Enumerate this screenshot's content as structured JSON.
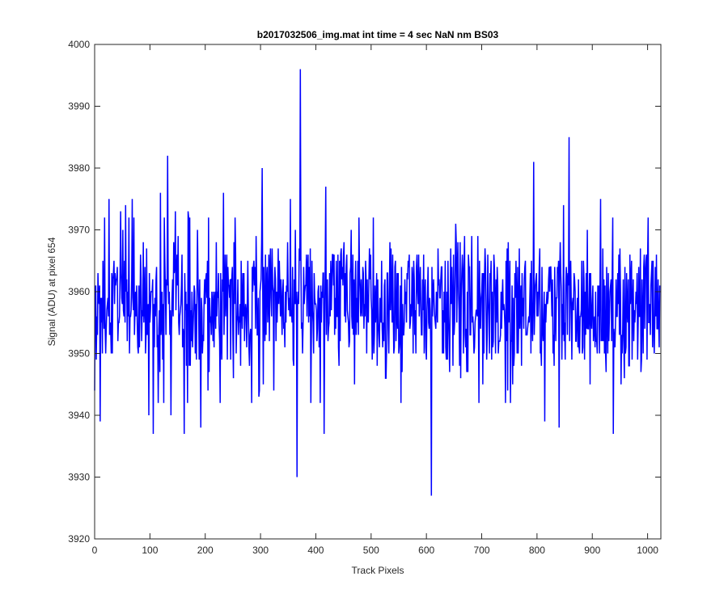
{
  "chart_data": {
    "type": "line",
    "title": "b2017032506_img.mat int time = 4 sec  NaN nm BS03",
    "xlabel": "Track Pixels",
    "ylabel": "Signal (ADU) at pixel 654",
    "xlim": [
      0,
      1024
    ],
    "ylim": [
      3920,
      4000
    ],
    "xticks": [
      "0",
      "100",
      "200",
      "300",
      "400",
      "500",
      "600",
      "700",
      "800",
      "900",
      "1000"
    ],
    "yticks": [
      "3920",
      "3930",
      "3940",
      "3950",
      "3960",
      "3970",
      "3980",
      "3990",
      "4000"
    ],
    "grid": false,
    "line_color": "#0000ff",
    "series": [
      {
        "name": "",
        "keypoints": [
          [
            0,
            3944
          ],
          [
            2,
            3961
          ],
          [
            5,
            3953
          ],
          [
            8,
            3958
          ],
          [
            10,
            3939
          ],
          [
            12,
            3955
          ],
          [
            18,
            3972
          ],
          [
            22,
            3957
          ],
          [
            26,
            3975
          ],
          [
            30,
            3950
          ],
          [
            40,
            3962
          ],
          [
            52,
            3957
          ],
          [
            56,
            3974
          ],
          [
            63,
            3950
          ],
          [
            68,
            3975
          ],
          [
            82,
            3957
          ],
          [
            88,
            3968
          ],
          [
            95,
            3953
          ],
          [
            98,
            3940
          ],
          [
            102,
            3960
          ],
          [
            106,
            3937
          ],
          [
            112,
            3964
          ],
          [
            118,
            3947
          ],
          [
            126,
            3972
          ],
          [
            132,
            3982
          ],
          [
            135,
            3960
          ],
          [
            138,
            3940
          ],
          [
            146,
            3973
          ],
          [
            152,
            3955
          ],
          [
            158,
            3966
          ],
          [
            162,
            3937
          ],
          [
            170,
            3972
          ],
          [
            178,
            3954
          ],
          [
            186,
            3970
          ],
          [
            192,
            3938
          ],
          [
            200,
            3958
          ],
          [
            206,
            3972
          ],
          [
            214,
            3952
          ],
          [
            220,
            3968
          ],
          [
            232,
            3960
          ],
          [
            240,
            3949
          ],
          [
            254,
            3972
          ],
          [
            262,
            3955
          ],
          [
            270,
            3963
          ],
          [
            280,
            3948
          ],
          [
            292,
            3969
          ],
          [
            298,
            3944
          ],
          [
            303,
            3980
          ],
          [
            308,
            3952
          ],
          [
            318,
            3967
          ],
          [
            324,
            3944
          ],
          [
            334,
            3965
          ],
          [
            346,
            3955
          ],
          [
            354,
            3975
          ],
          [
            360,
            3948
          ],
          [
            366,
            3930
          ],
          [
            368,
            3960
          ],
          [
            372,
            3996
          ],
          [
            375,
            3955
          ],
          [
            386,
            3966
          ],
          [
            396,
            3950
          ],
          [
            404,
            3960
          ],
          [
            410,
            3955
          ],
          [
            415,
            3937
          ],
          [
            418,
            3977
          ],
          [
            424,
            3955
          ],
          [
            433,
            3966
          ],
          [
            442,
            3948
          ],
          [
            456,
            3966
          ],
          [
            470,
            3945
          ],
          [
            482,
            3962
          ],
          [
            492,
            3950
          ],
          [
            510,
            3963
          ],
          [
            526,
            3946
          ],
          [
            536,
            3967
          ],
          [
            546,
            3956
          ],
          [
            556,
            3947
          ],
          [
            566,
            3962
          ],
          [
            576,
            3950
          ],
          [
            586,
            3966
          ],
          [
            596,
            3950
          ],
          [
            604,
            3955
          ],
          [
            609,
            3927
          ],
          [
            614,
            3958
          ],
          [
            626,
            3962
          ],
          [
            636,
            3949
          ],
          [
            646,
            3964
          ],
          [
            660,
            3948
          ],
          [
            676,
            3966
          ],
          [
            692,
            3956
          ],
          [
            702,
            3945
          ],
          [
            716,
            3962
          ],
          [
            730,
            3950
          ],
          [
            744,
            3965
          ],
          [
            756,
            3945
          ],
          [
            770,
            3958
          ],
          [
            786,
            3955
          ],
          [
            794,
            3981
          ],
          [
            800,
            3956
          ],
          [
            808,
            3948
          ],
          [
            814,
            3939
          ],
          [
            818,
            3960
          ],
          [
            826,
            3960
          ],
          [
            840,
            3938
          ],
          [
            850,
            3955
          ],
          [
            858,
            3985
          ],
          [
            862,
            3958
          ],
          [
            872,
            3956
          ],
          [
            882,
            3950
          ],
          [
            896,
            3945
          ],
          [
            906,
            3960
          ],
          [
            920,
            3952
          ],
          [
            938,
            3937
          ],
          [
            948,
            3966
          ],
          [
            960,
            3950
          ],
          [
            974,
            3962
          ],
          [
            988,
            3947
          ],
          [
            1000,
            3965
          ],
          [
            1012,
            3950
          ],
          [
            1020,
            3955
          ]
        ]
      }
    ]
  }
}
